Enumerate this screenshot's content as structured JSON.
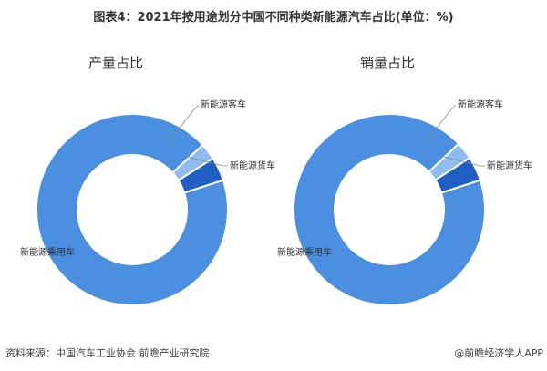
{
  "title": "图表4：2021年按用途划分中国不同种类新能源汽车占比(单位：%)",
  "source": "资料来源：中国汽车工业协会 前瞻产业研究院",
  "credit": "@前瞻经济学人APP",
  "chart_data": [
    {
      "type": "pie",
      "subtitle": "产量占比",
      "donut": true,
      "categories": [
        "新能源乘用车",
        "新能源客车",
        "新能源货车"
      ],
      "values": [
        93.2,
        2.8,
        4.0
      ],
      "colors": [
        "#4a8fe0",
        "#8fbcef",
        "#1f5fc4"
      ]
    },
    {
      "type": "pie",
      "subtitle": "销量占比",
      "donut": true,
      "categories": [
        "新能源乘用车",
        "新能源客车",
        "新能源货车"
      ],
      "values": [
        92.9,
        3.0,
        4.1
      ],
      "colors": [
        "#4a8fe0",
        "#8fbcef",
        "#1f5fc4"
      ]
    }
  ]
}
